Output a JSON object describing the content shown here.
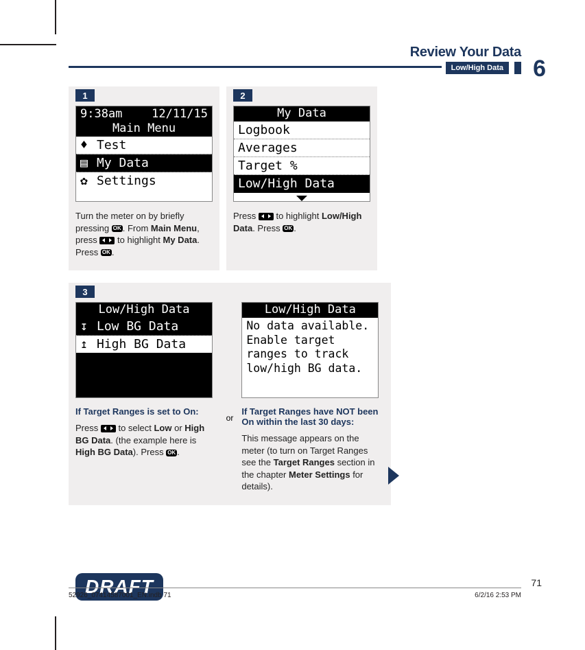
{
  "header": {
    "chapter_title": "Review Your Data",
    "subsection": "Low/High Data",
    "chapter_number": "6"
  },
  "step1": {
    "number": "1",
    "screen": {
      "time": "9:38am",
      "date": "12/11/15",
      "title": "Main Menu",
      "rows": [
        {
          "icon": "drop",
          "label": "Test",
          "highlighted": false
        },
        {
          "icon": "doc",
          "label": "My Data",
          "highlighted": true
        },
        {
          "icon": "gear",
          "label": "Settings",
          "highlighted": false
        }
      ]
    },
    "text_a": "Turn the meter on by briefly pressing ",
    "text_b": ". From ",
    "bold_b": "Main Menu",
    "text_c": ", press ",
    "text_d": " to highlight ",
    "bold_d": "My Data",
    "text_e": ". Press ",
    "text_f": "."
  },
  "step2": {
    "number": "2",
    "screen": {
      "title": "My Data",
      "rows": [
        {
          "label": "Logbook"
        },
        {
          "label": "Averages"
        },
        {
          "label": "Target %"
        },
        {
          "label": "Low/High Data",
          "highlighted": true
        }
      ]
    },
    "text_a": "Press ",
    "text_b": " to highlight ",
    "bold_b": "Low/High Data",
    "text_c": ". Press ",
    "text_d": "."
  },
  "step3": {
    "number": "3",
    "or_label": "or",
    "left": {
      "screen": {
        "title": "Low/High Data",
        "rows": [
          {
            "icon": "down",
            "label": "Low BG Data",
            "highlighted": true
          },
          {
            "icon": "up",
            "label": "High BG Data"
          }
        ]
      },
      "heading": "If Target Ranges is set to On:",
      "text_a": "Press ",
      "text_b": " to select ",
      "bold_b": "Low",
      "text_c": " or ",
      "bold_c": "High BG Data",
      "text_d": ". (the example here is ",
      "bold_d": "High BG Data",
      "text_e": "). Press ",
      "text_f": "."
    },
    "right": {
      "screen": {
        "title": "Low/High Data",
        "message": "No data available. Enable target ranges to track low/high BG data."
      },
      "heading": "If Target Ranges have NOT been On within the last 30 days:",
      "text_a": "This message appears on the meter (to turn on Target Ranges see the ",
      "bold_a": "Target Ranges",
      "text_b": " section in the chapter ",
      "bold_b": "Meter Settings",
      "text_c": " for details)."
    }
  },
  "draft_label": "DRAFT",
  "page_number": "71",
  "footer": {
    "left": "52926_07414587001_EN.indb   71",
    "right": "6/2/16   2:53 PM"
  },
  "ok_label": "OK",
  "colors": {
    "primary": "#1d365d",
    "card_bg": "#f0eeee"
  }
}
